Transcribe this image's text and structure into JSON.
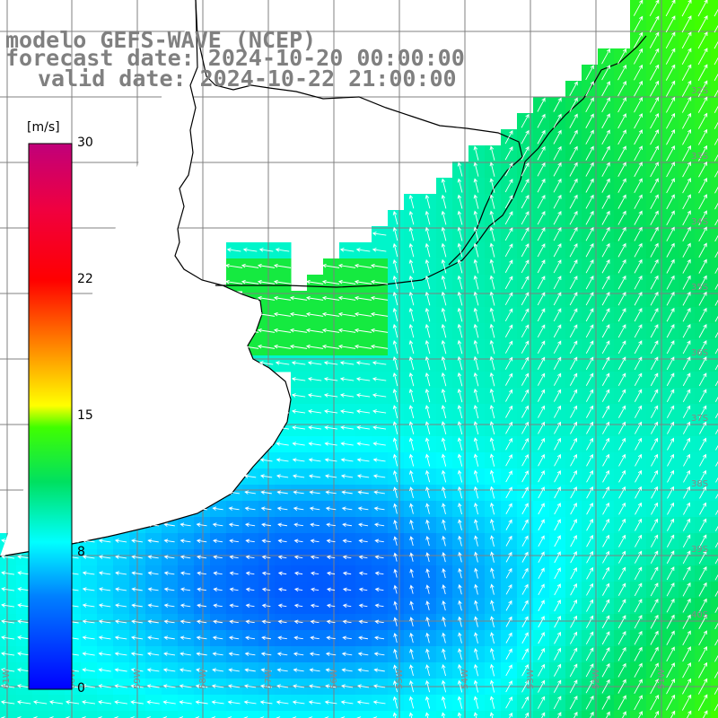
{
  "title": {
    "line1": "modelo GEFS-WAVE (NCEP)",
    "line2": "forecast date: 2024-10-20 00:00:00",
    "line3": "valid date: 2024-10-22 21:00:00"
  },
  "colorbar": {
    "unit": "[m/s]",
    "ticks": [
      "30",
      "22",
      "15",
      "8",
      "0"
    ],
    "colors": [
      "#c0007a",
      "#ff0000",
      "#ff8000",
      "#ffff00",
      "#00dd00",
      "#00ffff",
      "#0080ff",
      "#0000ff"
    ]
  },
  "grid": {
    "lat_labels": [
      "32S",
      "33S",
      "34S",
      "35S",
      "36S",
      "37S",
      "38S",
      "39S",
      "40S"
    ],
    "lon_labels": [
      "61W",
      "60W",
      "59W",
      "58W",
      "57W",
      "56W",
      "55W",
      "54W",
      "53W",
      "52W",
      "51W"
    ]
  }
}
